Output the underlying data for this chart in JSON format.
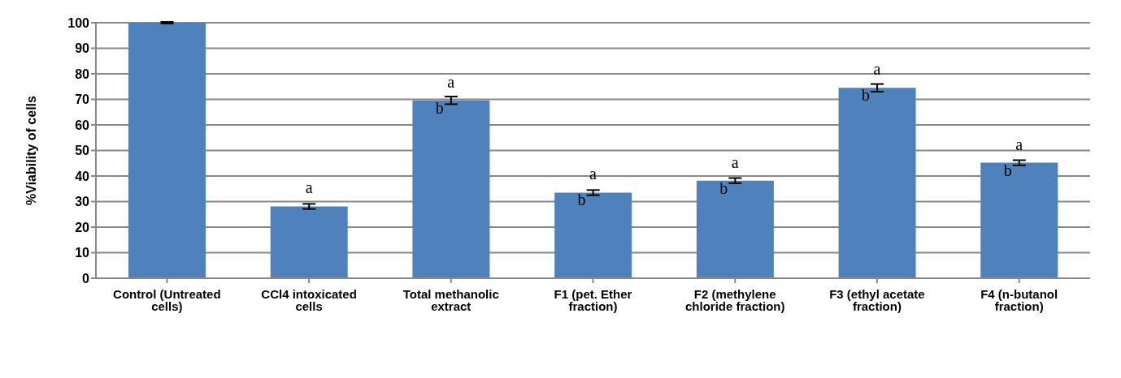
{
  "chart_data": {
    "type": "bar",
    "ylabel": "%Viability of cells",
    "categories": [
      "Control (Untreated cells)",
      "CCl4 intoxicated cells",
      "Total methanolic extract",
      "F1 (pet. Ether fraction)",
      "F2 (methylene chloride fraction)",
      "F3 (ethyl acetate fraction)",
      "F4 (n-butanol fraction)"
    ],
    "values": [
      100,
      28.1,
      69.6,
      33.5,
      38.2,
      74.5,
      45.2
    ],
    "errors": [
      0.3,
      1,
      1.5,
      1,
      1,
      1.5,
      1
    ],
    "color": "#4f81bd",
    "ylim": [
      0,
      100
    ],
    "yticks": [
      0,
      10,
      20,
      30,
      40,
      50,
      60,
      70,
      80,
      90,
      100
    ],
    "grid": "y",
    "annotations": [
      {
        "text": "a",
        "x": "CCl4 intoxicated cells",
        "y": 28.1
      },
      {
        "text": "a",
        "x": "Total methanolic extract",
        "y": 69.6
      },
      {
        "text": "b",
        "x": "Total methanolic extract",
        "y": 69.6
      },
      {
        "text": "a",
        "x": "F1 (pet. Ether fraction)",
        "y": 33.5
      },
      {
        "text": "b",
        "x": "F1 (pet. Ether fraction)",
        "y": 33.5
      },
      {
        "text": "a",
        "x": "F2 (methylene chloride fraction)",
        "y": 38.2
      },
      {
        "text": "b",
        "x": "F2 (methylene chloride fraction)",
        "y": 38.2
      },
      {
        "text": "a",
        "x": "F3 (ethyl acetate fraction)",
        "y": 74.5
      },
      {
        "text": "b",
        "x": "F3 (ethyl acetate fraction)",
        "y": 74.5
      },
      {
        "text": "a",
        "x": "F4 (n-butanol fraction)",
        "y": 45.2
      },
      {
        "text": "b",
        "x": "F4 (n-butanol fraction)",
        "y": 45.2
      }
    ]
  }
}
